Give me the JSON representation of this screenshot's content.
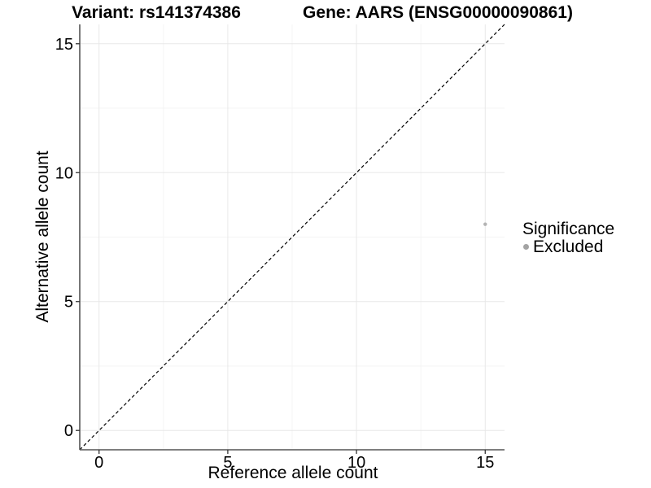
{
  "chart_data": {
    "type": "scatter",
    "titles": {
      "variant": "Variant: rs141374386",
      "gene": "Gene: AARS (ENSG00000090861)"
    },
    "xlabel": "Reference allele count",
    "ylabel": "Alternative allele count",
    "xlim": [
      -0.75,
      15.75
    ],
    "ylim": [
      -0.75,
      15.75
    ],
    "x_ticks": [
      0,
      5,
      10,
      15
    ],
    "y_ticks": [
      0,
      5,
      10,
      15
    ],
    "x_minor_ticks": [
      2.5,
      7.5,
      12.5
    ],
    "y_minor_ticks": [
      2.5,
      7.5,
      12.5
    ],
    "grid": "major+minor",
    "identity_line": {
      "style": "dashed",
      "color": "#000000",
      "from": [
        -0.75,
        -0.75
      ],
      "to": [
        15.75,
        15.75
      ]
    },
    "series": [
      {
        "name": "Excluded",
        "color": "#b3b3b3",
        "marker": "circle",
        "point_radius": 2.2,
        "points": [
          {
            "x": 15,
            "y": 8
          }
        ]
      }
    ],
    "legend": {
      "title": "Significance",
      "position": "right",
      "entries": [
        {
          "label": "Excluded",
          "color": "#a3a3a3",
          "marker": "circle"
        }
      ]
    },
    "colors": {
      "background": "#ffffff",
      "axis_line": "#555555",
      "tick_mark": "#333333",
      "major_grid": "#e8e8e8",
      "minor_grid": "#f4f4f4",
      "text": "#000000"
    },
    "tick_font_px": 20
  }
}
